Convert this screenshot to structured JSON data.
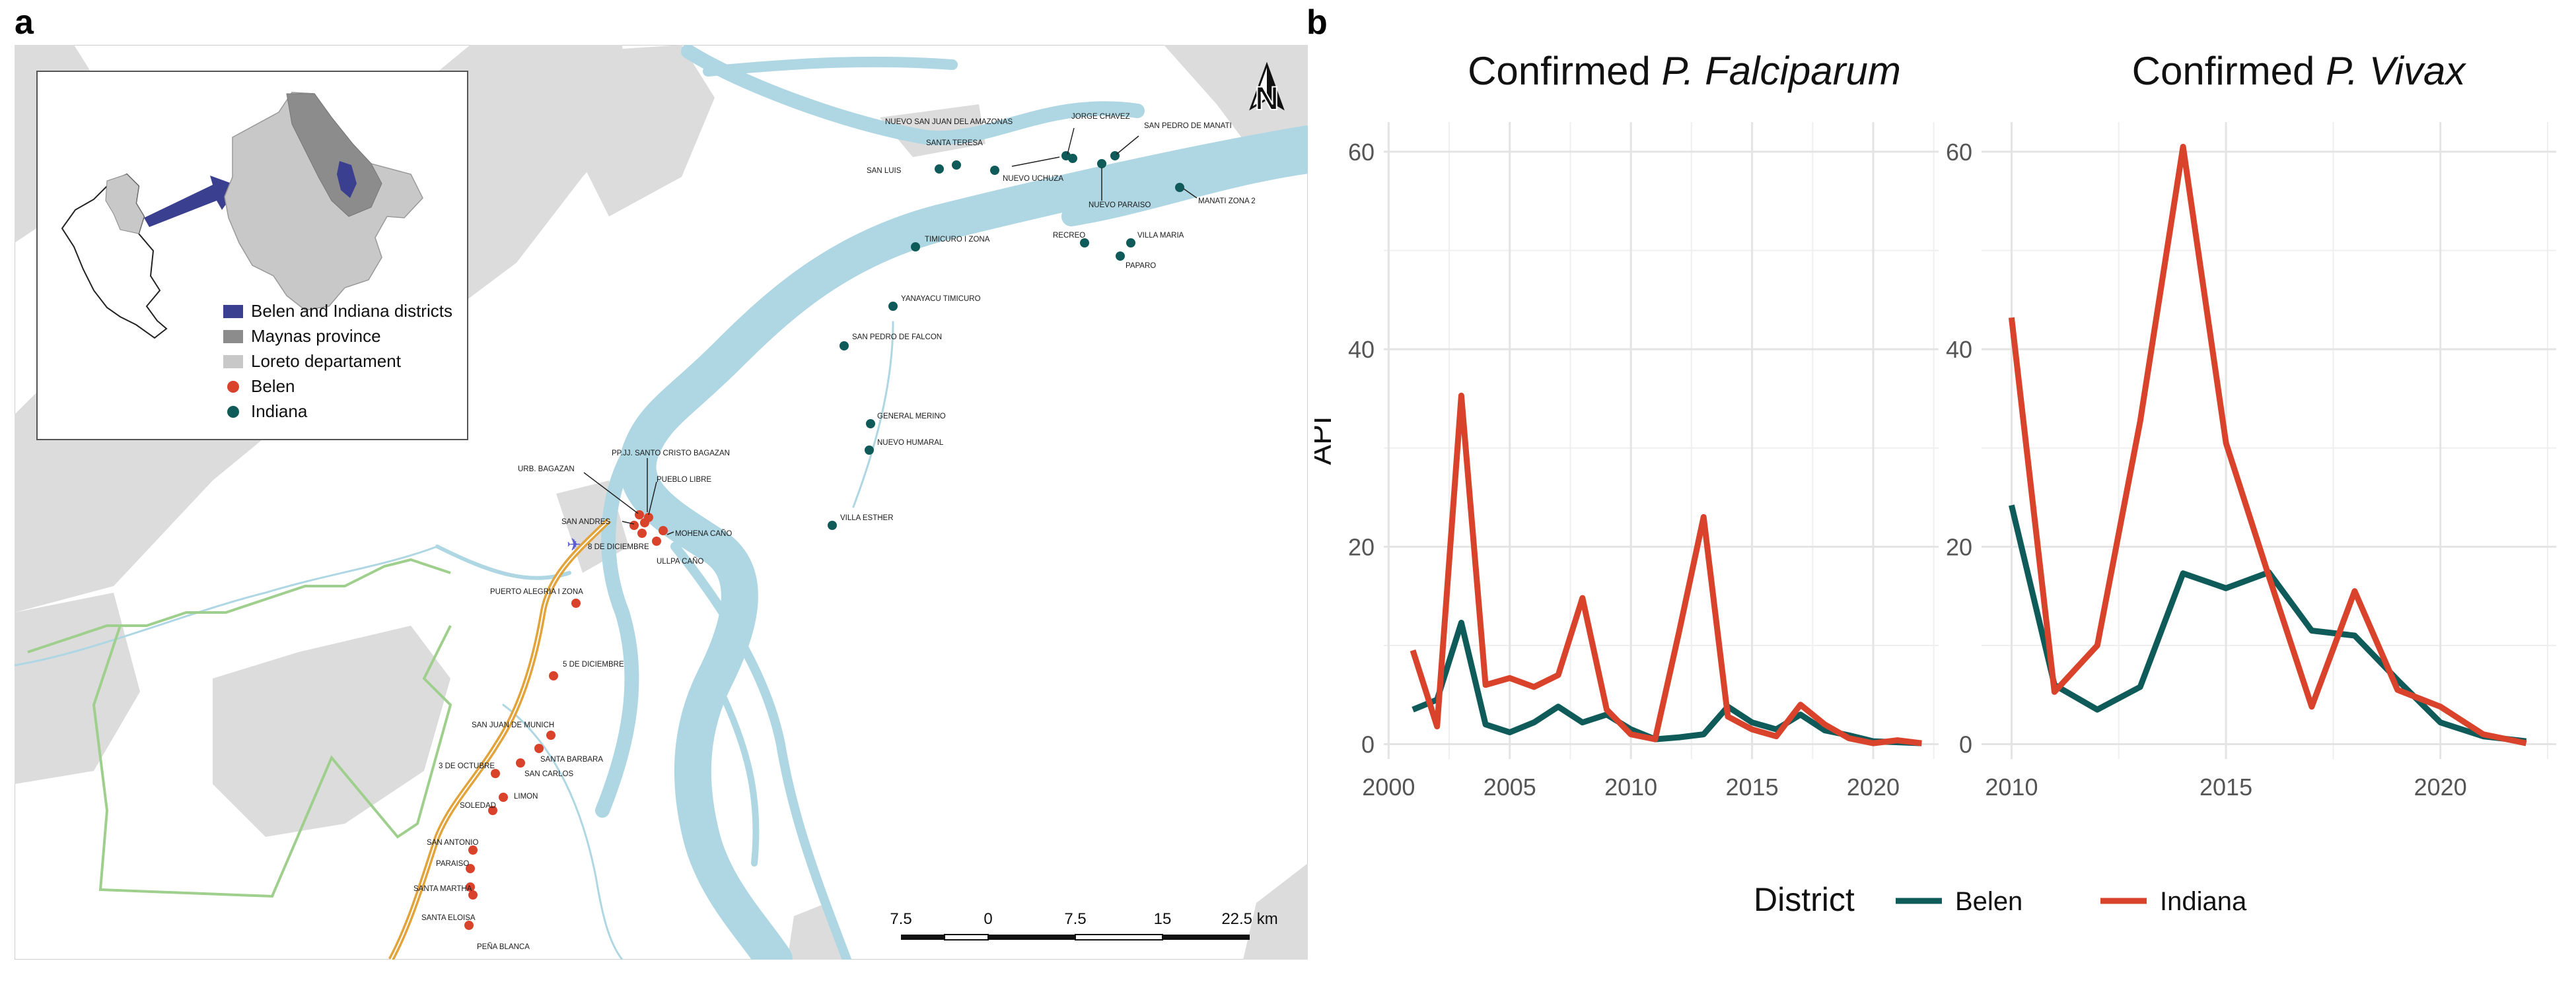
{
  "panel_a": {
    "letter": "a"
  },
  "panel_b": {
    "letter": "b"
  },
  "map": {
    "legend": [
      {
        "label": "Belen and Indiana districts",
        "color": "#3b3f8f",
        "shape": "square"
      },
      {
        "label": "Maynas province",
        "color": "#8c8c8c",
        "shape": "square"
      },
      {
        "label": "Loreto departament",
        "color": "#c8c8c8",
        "shape": "square"
      },
      {
        "label": "Belen",
        "color": "#d9432b",
        "shape": "circle"
      },
      {
        "label": "Indiana",
        "color": "#0f5b5a",
        "shape": "circle"
      }
    ],
    "north_label": "N",
    "scale_bar_labels": [
      "7.5",
      "0",
      "7.5",
      "15",
      "22.5 km"
    ],
    "indiana_villages": [
      "NUEVO SAN JUAN DEL AMAZONAS",
      "SANTA TERESA",
      "SAN LUIS",
      "NUEVO UCHUZA",
      "JORGE CHAVEZ",
      "SAN PEDRO DE MANATI",
      "NUEVO PARAISO",
      "MANATI ZONA 2",
      "TIMICURO I ZONA",
      "RECREO",
      "VILLA MARIA",
      "PAPARO",
      "YANAYACU TIMICURO",
      "SAN PEDRO DE FALCON",
      "GENERAL MERINO",
      "NUEVO HUMARAL",
      "VILLA ESTHER"
    ],
    "belen_villages": [
      "URB. BAGAZAN",
      "PP.JJ. SANTO CRISTO BAGAZAN",
      "PUEBLO LIBRE",
      "SAN ANDRES",
      "8 DE DICIEMBRE",
      "MOHENA CAÑO",
      "ULLPA CAÑO",
      "PUERTO ALEGRIA I ZONA",
      "5 DE DICIEMBRE",
      "SAN JUAN DE MUNICH",
      "SANTA BARBARA",
      "3 DE OCTUBRE",
      "SAN CARLOS",
      "LIMON",
      "SOLEDAD",
      "SAN ANTONIO",
      "PARAISO",
      "SANTA MARTHA",
      "SANTA ELOISA",
      "PEÑA BLANCA"
    ]
  },
  "chart_data": [
    {
      "type": "line",
      "title_prefix": "Confirmed ",
      "title_italic": "P. Falciparum",
      "xlabel": "",
      "ylabel": "API",
      "xlim": [
        1999.8,
        2022.7
      ],
      "ylim": [
        -1.5,
        63
      ],
      "xticks": [
        2000,
        2005,
        2010,
        2015,
        2020
      ],
      "yticks": [
        0,
        20,
        40,
        60
      ],
      "grid": true,
      "x": [
        2001,
        2002,
        2003,
        2004,
        2005,
        2006,
        2007,
        2008,
        2009,
        2010,
        2011,
        2012,
        2013,
        2014,
        2015,
        2016,
        2017,
        2018,
        2019,
        2020,
        2021,
        2022
      ],
      "series": [
        {
          "name": "Belen",
          "color": "#0f5b5a",
          "values": [
            3.5,
            4.5,
            12.3,
            2.0,
            1.2,
            2.2,
            3.8,
            2.2,
            3.0,
            1.5,
            0.5,
            0.7,
            1.0,
            3.8,
            2.2,
            1.5,
            3.0,
            1.4,
            0.9,
            0.3,
            0.2,
            0.1
          ]
        },
        {
          "name": "Indiana",
          "color": "#d9432b",
          "values": [
            9.5,
            1.8,
            35.3,
            6.0,
            6.7,
            5.8,
            7.0,
            14.8,
            3.5,
            1.0,
            0.5,
            11.5,
            23.0,
            2.8,
            1.5,
            0.8,
            4.0,
            2.0,
            0.6,
            0.1,
            0.4,
            0.1
          ]
        }
      ]
    },
    {
      "type": "line",
      "title_prefix": "Confirmed ",
      "title_italic": "P. Vivax",
      "xlabel": "",
      "ylabel": "",
      "xlim": [
        2009.3,
        2022.7
      ],
      "ylim": [
        -1.5,
        63
      ],
      "xticks": [
        2010,
        2015,
        2020
      ],
      "yticks": [
        0,
        20,
        40,
        60
      ],
      "grid": true,
      "x": [
        2010,
        2011,
        2012,
        2013,
        2014,
        2015,
        2016,
        2017,
        2018,
        2019,
        2020,
        2021,
        2022
      ],
      "series": [
        {
          "name": "Belen",
          "color": "#0f5b5a",
          "values": [
            24.2,
            6.0,
            3.5,
            5.8,
            17.3,
            15.8,
            17.4,
            11.5,
            11.0,
            6.5,
            2.2,
            0.8,
            0.3
          ]
        },
        {
          "name": "Indiana",
          "color": "#d9432b",
          "values": [
            43.2,
            5.3,
            10.0,
            32.7,
            60.5,
            30.5,
            17.0,
            3.8,
            15.5,
            5.5,
            3.8,
            1.0,
            0.1
          ]
        }
      ]
    }
  ],
  "chart_legend": {
    "title": "District",
    "items": [
      {
        "label": "Belen",
        "color": "#0f5b5a"
      },
      {
        "label": "Indiana",
        "color": "#d9432b"
      }
    ]
  }
}
